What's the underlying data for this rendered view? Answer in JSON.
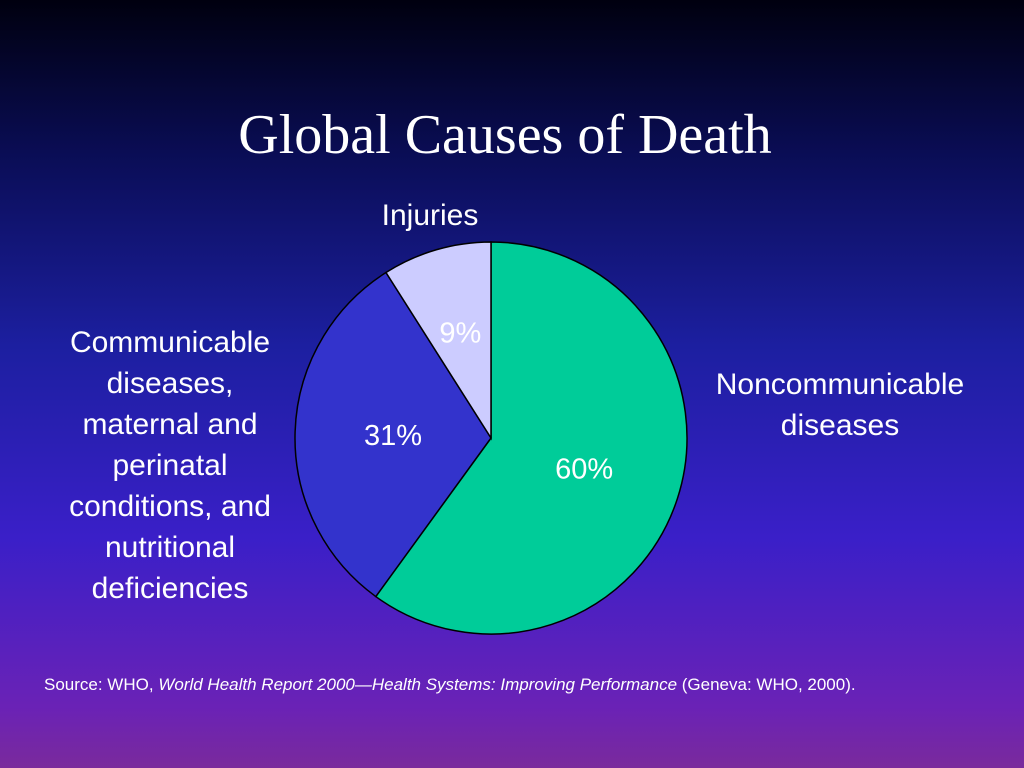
{
  "title": "Global Causes of Death",
  "colors": {
    "noncommunicable": "#00cc99",
    "communicable": "#3333cc",
    "injuries": "#ccccff",
    "outline": "#000000"
  },
  "chart_data": {
    "type": "pie",
    "title": "Global Causes of Death",
    "slices": [
      {
        "label": "Noncommunicable\ndiseases",
        "value": 60,
        "value_label": "60%",
        "color": "#00cc99"
      },
      {
        "label": "Communicable\ndiseases,\nmaternal and\nperinatal\nconditions, and\nnutritional\ndeficiencies",
        "value": 31,
        "value_label": "31%",
        "color": "#3333cc"
      },
      {
        "label": "Injuries",
        "value": 9,
        "value_label": "9%",
        "color": "#ccccff"
      }
    ]
  },
  "source": {
    "prefix": "Source: WHO, ",
    "italic": "World Health Report 2000—Health Systems: Improving Performance",
    "suffix": " (Geneva: WHO, 2000)."
  }
}
